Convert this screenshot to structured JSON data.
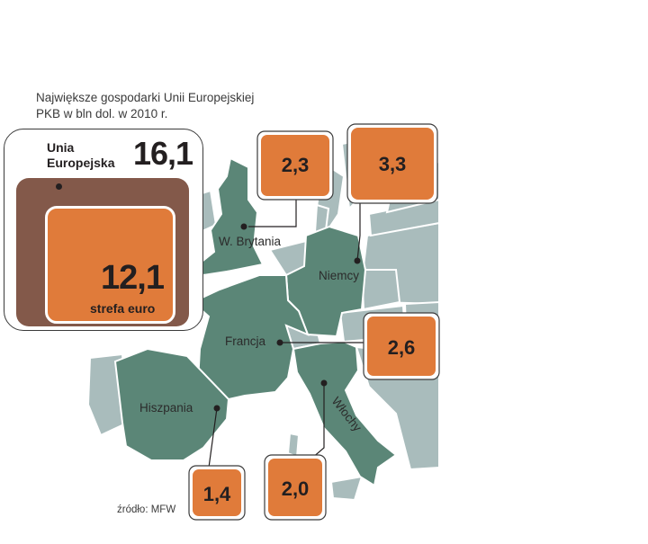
{
  "title_lines": [
    "Największe gospodarki Unii Europejskiej",
    "PKB w bln dol. w 2010 r."
  ],
  "legend": {
    "eu_label_line1": "Unia",
    "eu_label_line2": "Europejska",
    "eu_value": "16,1",
    "ez_value": "12,1",
    "ez_label": "strefa euro"
  },
  "source": "źródło: MFW",
  "colors": {
    "eu": "#83594a",
    "eurozone": "#e07b3a",
    "highlighted_country": "#5b8677",
    "other_country": "#a9bcbc"
  },
  "chart_data": {
    "type": "bar",
    "title": "Największe gospodarki Unii Europejskiej",
    "subtitle": "PKB w bln dol. w 2010 r.",
    "categories": [
      "W. Brytania",
      "Niemcy",
      "Francja",
      "Włochy",
      "Hiszpania"
    ],
    "values": [
      2.3,
      3.3,
      2.6,
      2.0,
      1.4
    ],
    "value_labels": [
      "2,3",
      "3,3",
      "2,6",
      "2,0",
      "1,4"
    ],
    "totals": [
      {
        "label": "Unia Europejska",
        "value": 16.1
      },
      {
        "label": "strefa euro",
        "value": 12.1
      }
    ],
    "unit": "bln dol."
  }
}
